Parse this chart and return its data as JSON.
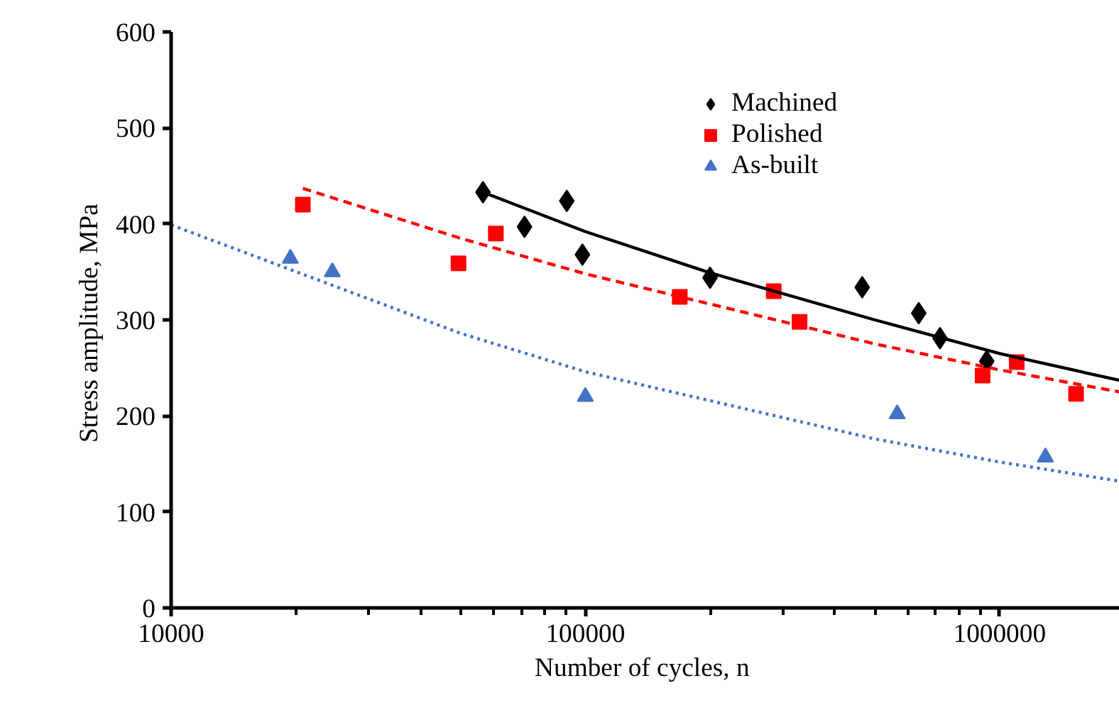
{
  "chart_data": {
    "type": "scatter",
    "xlabel": "Number of cycles,  n",
    "ylabel": "Stress amplitude,  MPa",
    "log": "x",
    "xlim": [
      10000,
      1950000
    ],
    "ylim": [
      0,
      600
    ],
    "xticks": [
      10000,
      100000,
      1000000
    ],
    "yticks": [
      0,
      100,
      200,
      300,
      400,
      500,
      600
    ],
    "grid": false,
    "legend": "top right",
    "series": [
      {
        "name": "Machined",
        "marker": "diamond",
        "color": "#000000",
        "x": [
          56600,
          71300,
          90200,
          98400,
          200000,
          466000,
          638000,
          718000,
          931000
        ],
        "values": [
          433,
          397,
          424,
          368,
          344,
          334,
          307,
          281,
          257
        ]
      },
      {
        "name": "Polished",
        "marker": "square",
        "color": "#ff0000",
        "x": [
          20800,
          49400,
          60800,
          169000,
          285000,
          329000,
          910000,
          1100000,
          1530000
        ],
        "values": [
          420,
          359,
          390,
          324,
          330,
          298,
          242,
          256,
          223
        ]
      },
      {
        "name": "As-built",
        "marker": "triangle",
        "color": "#4472c4",
        "x": [
          19400,
          24500,
          100000,
          566000,
          1290000
        ],
        "values": [
          364,
          350,
          220,
          202,
          157
        ]
      },
      {
        "type": "line",
        "line_style": "solid",
        "color": "#000000",
        "x": [
          56600,
          100000,
          200000,
          500000,
          1000000,
          1950000
        ],
        "values": [
          433,
          392,
          349,
          300,
          265,
          237
        ]
      },
      {
        "type": "line",
        "line_style": "dashed",
        "color": "#ff0000",
        "x": [
          20800,
          50000,
          100000,
          500000,
          1000000,
          1950000
        ],
        "values": [
          437,
          385,
          348,
          275,
          248,
          225
        ]
      },
      {
        "type": "line",
        "line_style": "dotted",
        "color": "#4472c4",
        "x": [
          10000,
          50000,
          100000,
          500000,
          1000000,
          1950000
        ],
        "values": [
          399,
          286,
          246,
          176,
          152,
          132
        ]
      }
    ]
  }
}
